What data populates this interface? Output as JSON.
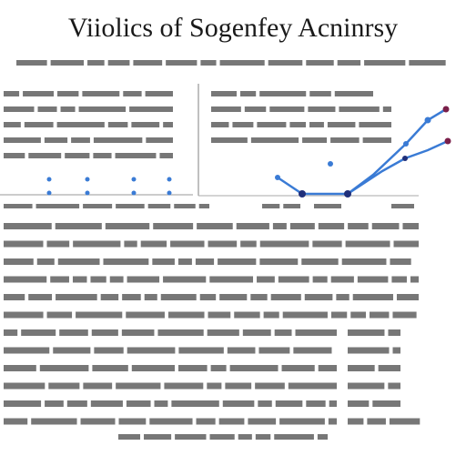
{
  "header": {
    "title": "Viiolics of Sogenfey Acninrsy"
  }
}
